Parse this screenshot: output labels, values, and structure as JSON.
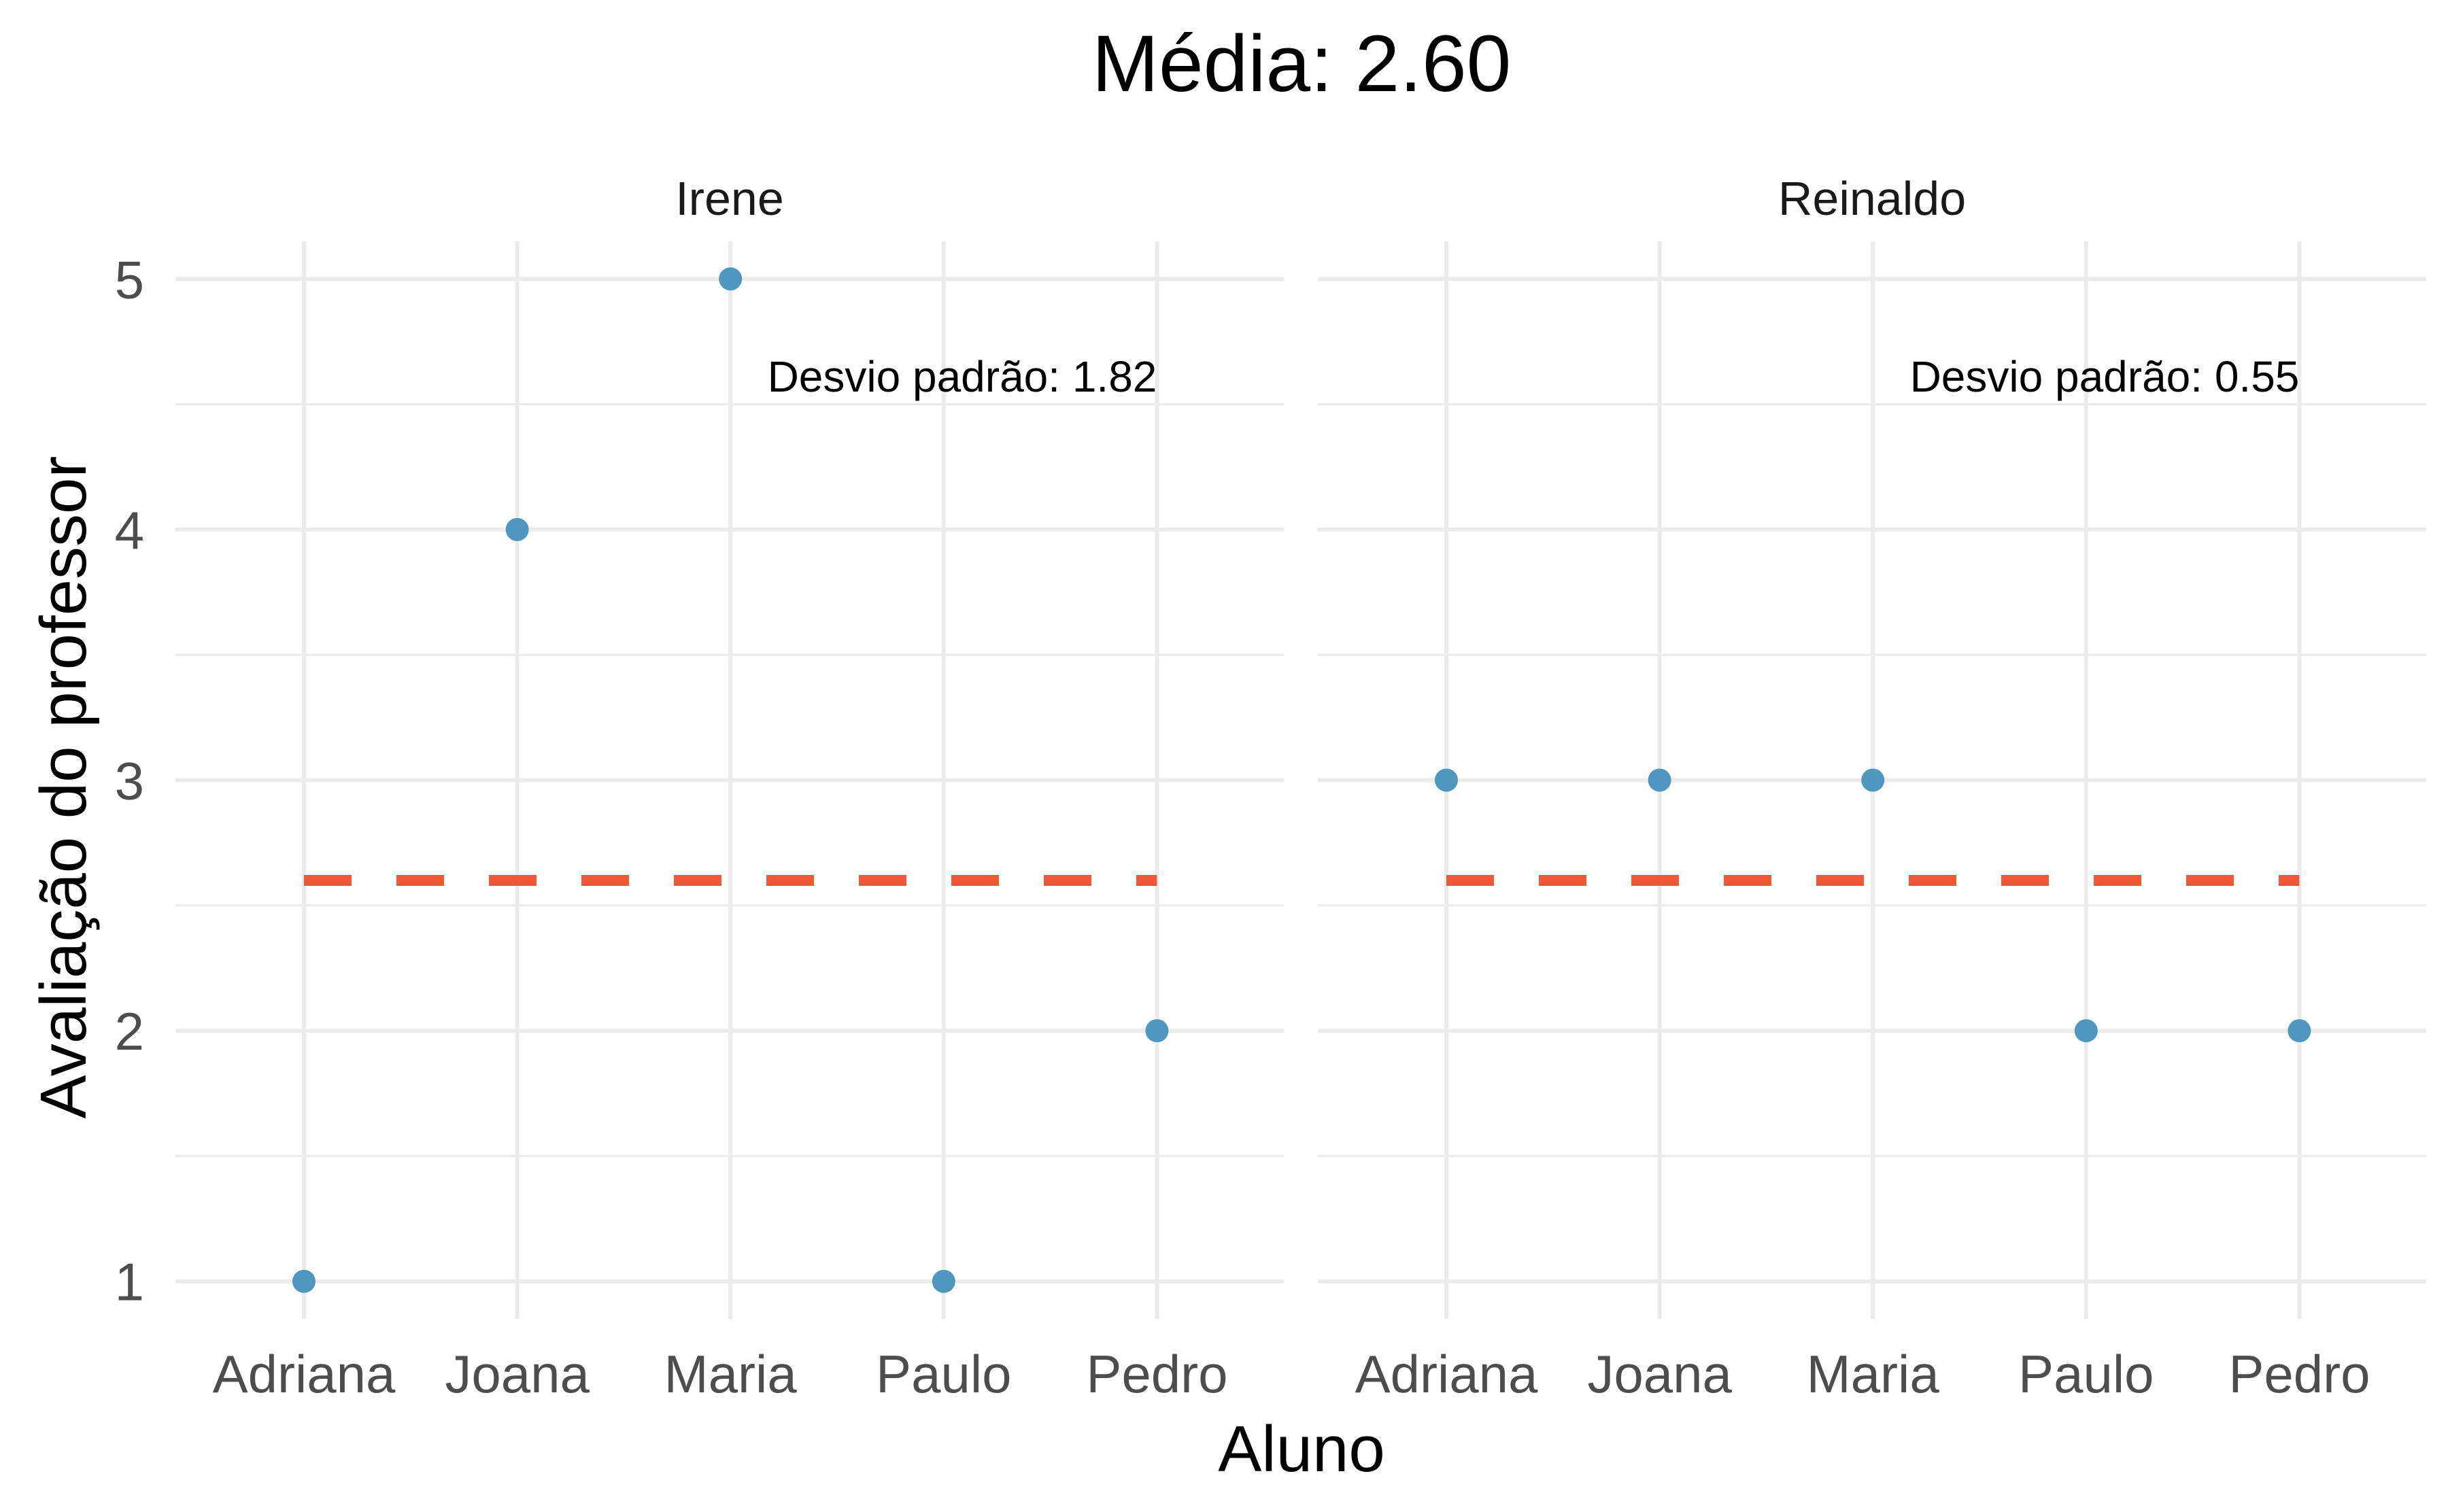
{
  "chart_data": {
    "type": "scatter",
    "title": "Média: 2.60",
    "xlabel": "Aluno",
    "ylabel": "Avaliação do professor",
    "ylim": [
      0.85,
      5.15
    ],
    "yticks": [
      1,
      2,
      3,
      4,
      5
    ],
    "categories": [
      "Adriana",
      "Joana",
      "Maria",
      "Paulo",
      "Pedro"
    ],
    "reference_line": {
      "value": 2.6,
      "style": "dashed",
      "color": "#EE5737"
    },
    "point_color": "#4F97BF",
    "grid": true,
    "panels": [
      {
        "name": "Irene",
        "values": [
          1,
          4,
          5,
          1,
          2
        ],
        "annotation": "Desvio padrão: 1.82"
      },
      {
        "name": "Reinaldo",
        "values": [
          3,
          3,
          3,
          2,
          2
        ],
        "annotation": "Desvio padrão: 0.55"
      }
    ]
  }
}
